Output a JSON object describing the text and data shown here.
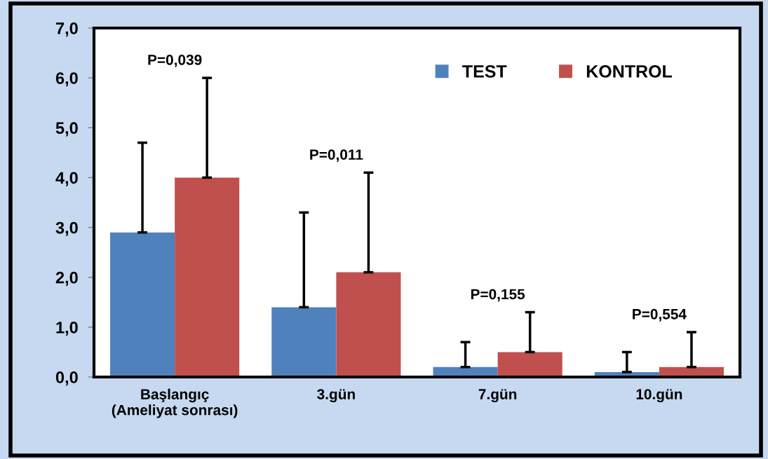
{
  "chart_data": {
    "type": "bar",
    "categories": [
      "Başlangıç\n(Ameliyat sonrası)",
      "3.gün",
      "7.gün",
      "10.gün"
    ],
    "series": [
      {
        "name": "TEST",
        "color": "#4f81bd",
        "values": [
          2.9,
          1.4,
          0.2,
          0.1
        ],
        "errors": [
          [
            2.9,
            4.7
          ],
          [
            1.4,
            3.3
          ],
          [
            0.2,
            0.7
          ],
          [
            0.1,
            0.5
          ]
        ]
      },
      {
        "name": "KONTROL",
        "color": "#c0504d",
        "values": [
          4.0,
          2.1,
          0.5,
          0.2
        ],
        "errors": [
          [
            4.0,
            6.0
          ],
          [
            2.1,
            4.1
          ],
          [
            0.5,
            1.3
          ],
          [
            0.2,
            0.9
          ]
        ]
      }
    ],
    "annotations": [
      "P=0,039",
      "P=0,011",
      "P=0,155",
      "P=0,554"
    ],
    "ylim": [
      0,
      7
    ],
    "yticks": [
      {
        "value": 0,
        "label": "0,0"
      },
      {
        "value": 1,
        "label": "1,0"
      },
      {
        "value": 2,
        "label": "2,0"
      },
      {
        "value": 3,
        "label": "3,0"
      },
      {
        "value": 4,
        "label": "4,0"
      },
      {
        "value": 5,
        "label": "5,0"
      },
      {
        "value": 6,
        "label": "6,0"
      },
      {
        "value": 7,
        "label": "7,0"
      }
    ],
    "grid": false,
    "legend": "top right"
  }
}
